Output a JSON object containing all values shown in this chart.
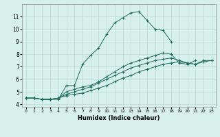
{
  "xlabel": "Humidex (Indice chaleur)",
  "bg_color": "#d8f0ec",
  "grid_color": "#b8d8d0",
  "line_color": "#1a6b5a",
  "line1_x": [
    0,
    1,
    2,
    3,
    4,
    5,
    6,
    7,
    8,
    9,
    10,
    11,
    12,
    13,
    14,
    15,
    16,
    17,
    18,
    19
  ],
  "line1_y": [
    4.5,
    4.5,
    4.4,
    4.4,
    4.4,
    5.5,
    5.5,
    7.2,
    7.9,
    8.5,
    9.6,
    10.5,
    10.9,
    11.3,
    11.4,
    10.7,
    10.0,
    9.9,
    9.0,
    null
  ],
  "line2_x": [
    0,
    1,
    2,
    3,
    4,
    5,
    6,
    7,
    8,
    9,
    10,
    11,
    12,
    13,
    14,
    15,
    16,
    17,
    18,
    19,
    20,
    21,
    22
  ],
  "line2_y": [
    4.5,
    4.5,
    4.4,
    4.4,
    4.5,
    5.0,
    5.2,
    5.4,
    5.5,
    5.8,
    6.2,
    6.6,
    7.0,
    7.3,
    7.5,
    7.7,
    7.9,
    8.1,
    8.0,
    7.3,
    7.2,
    7.5,
    null
  ],
  "line3_x": [
    0,
    1,
    2,
    3,
    4,
    5,
    6,
    7,
    8,
    9,
    10,
    11,
    12,
    13,
    14,
    15,
    16,
    17,
    18,
    19,
    20,
    21,
    22,
    23
  ],
  "line3_y": [
    4.5,
    4.5,
    4.4,
    4.4,
    4.5,
    4.8,
    5.0,
    5.2,
    5.4,
    5.7,
    6.0,
    6.3,
    6.6,
    6.9,
    7.1,
    7.3,
    7.5,
    7.6,
    7.7,
    7.5,
    7.3,
    7.2,
    7.5,
    7.5
  ],
  "line4_x": [
    0,
    1,
    2,
    3,
    4,
    5,
    6,
    7,
    8,
    9,
    10,
    11,
    12,
    13,
    14,
    15,
    16,
    17,
    18,
    19,
    20,
    21,
    22,
    23
  ],
  "line4_y": [
    4.5,
    4.5,
    4.4,
    4.4,
    4.5,
    4.7,
    4.8,
    4.9,
    5.1,
    5.3,
    5.5,
    5.8,
    6.1,
    6.3,
    6.6,
    6.8,
    7.0,
    7.2,
    7.3,
    7.4,
    7.3,
    7.2,
    7.4,
    7.5
  ],
  "xlim": [
    -0.5,
    23.5
  ],
  "ylim": [
    3.8,
    12.0
  ],
  "yticks": [
    4,
    5,
    6,
    7,
    8,
    9,
    10,
    11
  ],
  "xticks": [
    0,
    1,
    2,
    3,
    4,
    5,
    6,
    7,
    8,
    9,
    10,
    11,
    12,
    13,
    14,
    15,
    16,
    17,
    18,
    19,
    20,
    21,
    22,
    23
  ]
}
